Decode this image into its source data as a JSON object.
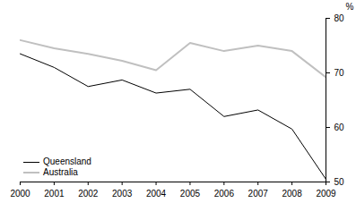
{
  "chart_data": {
    "type": "line",
    "x": [
      2000,
      2001,
      2002,
      2003,
      2004,
      2005,
      2006,
      2007,
      2008,
      2009
    ],
    "xlim": [
      2000,
      2009
    ],
    "xticks": [
      2000,
      2001,
      2002,
      2003,
      2004,
      2005,
      2006,
      2007,
      2008,
      2009
    ],
    "ylabel": "%",
    "ylim": [
      50,
      80
    ],
    "yticks": [
      50,
      60,
      70,
      80
    ],
    "legend": "bottom-left",
    "grid": false,
    "series": [
      {
        "name": "Queensland",
        "color": "#000000",
        "values": [
          73.5,
          71,
          67.5,
          68.7,
          66.3,
          67,
          62,
          63.2,
          59.7,
          50.5
        ]
      },
      {
        "name": "Australia",
        "color": "#c0c0c0",
        "values": [
          76,
          74.5,
          73.5,
          72.2,
          70.5,
          75.5,
          74,
          75,
          74,
          69.2
        ]
      }
    ]
  }
}
